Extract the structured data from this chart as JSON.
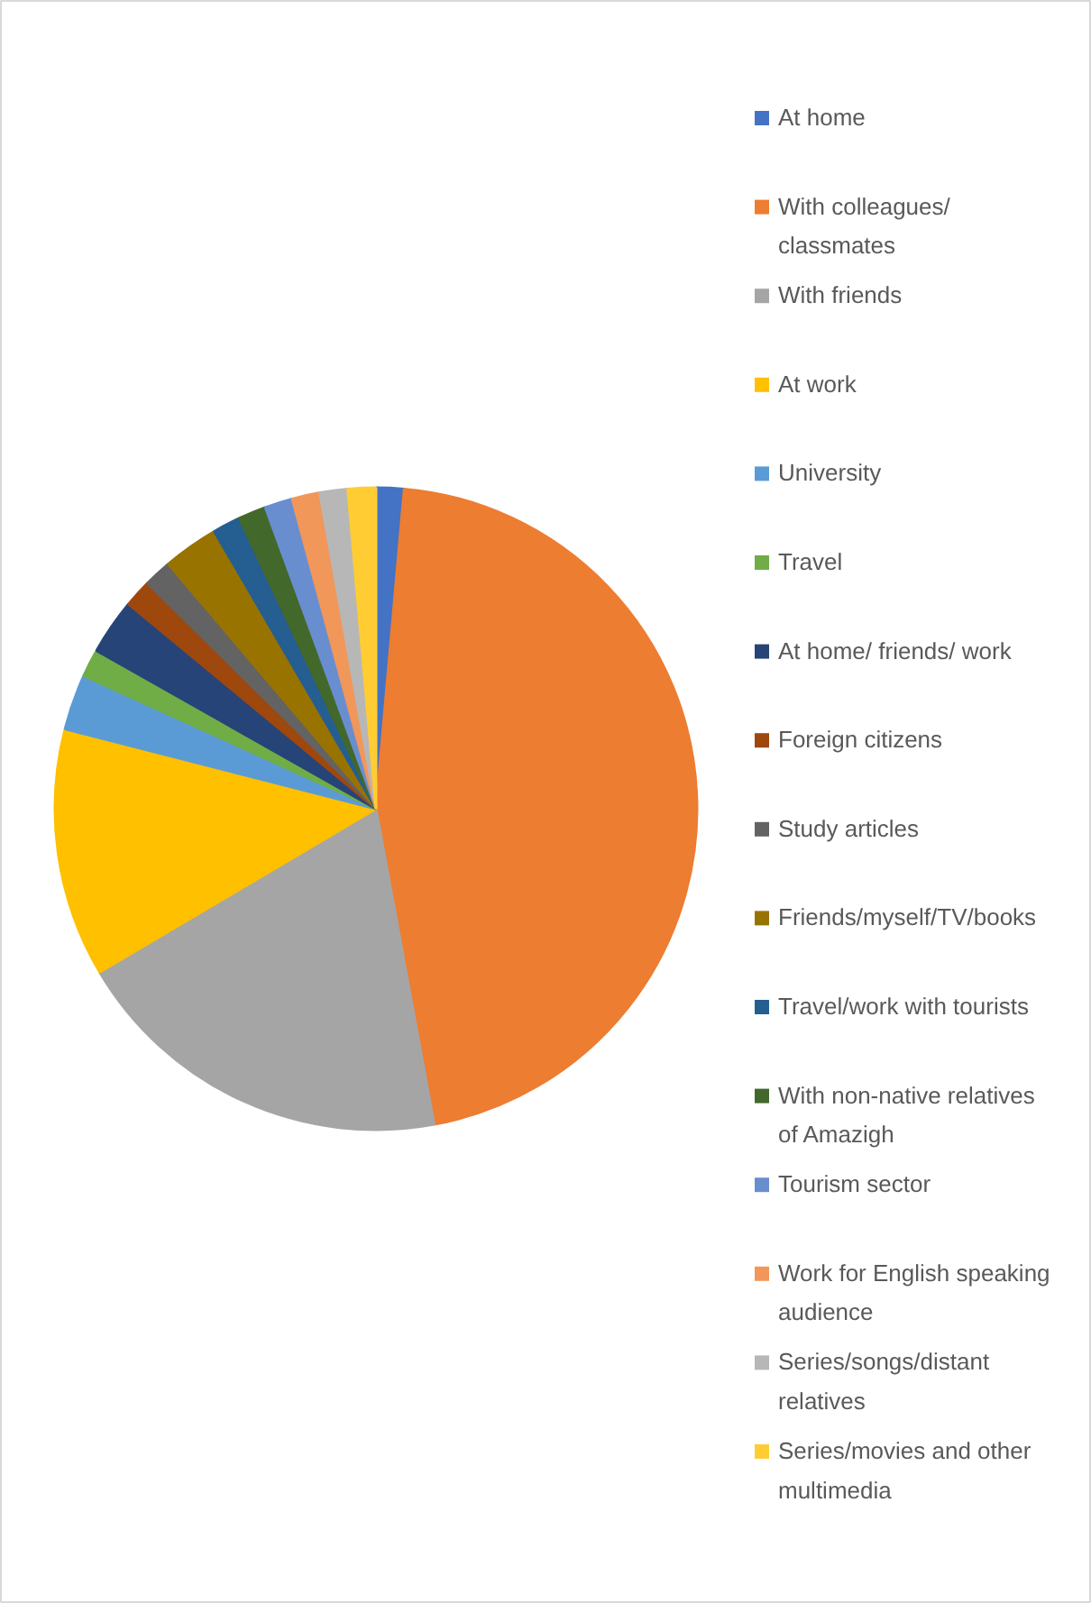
{
  "chart_data": {
    "type": "pie",
    "legend": "right",
    "categories": [
      "At home",
      "With colleagues/ classmates",
      "With friends",
      "At work",
      "University",
      "Travel",
      "At home/ friends/ work",
      "Foreign citizens",
      "Study articles",
      "Friends/myself/TV/books",
      "Travel/work with tourists",
      "With non-native relatives of Amazigh",
      "Tourism sector",
      "Work for English speaking audience",
      "Series/songs/distant relatives",
      "Series/movies and other multimedia"
    ],
    "values": [
      1.4,
      45.7,
      19.4,
      12.5,
      2.8,
      1.4,
      2.8,
      1.4,
      1.4,
      2.8,
      1.4,
      1.4,
      1.4,
      1.4,
      1.4,
      1.4
    ],
    "colors": [
      "#4472c4",
      "#ed7d31",
      "#a5a5a5",
      "#ffc000",
      "#5b9bd5",
      "#70ad47",
      "#264478",
      "#9e480e",
      "#636363",
      "#997300",
      "#255e91",
      "#43682b",
      "#698ed0",
      "#f1975a",
      "#b7b7b7",
      "#ffcd33"
    ]
  }
}
